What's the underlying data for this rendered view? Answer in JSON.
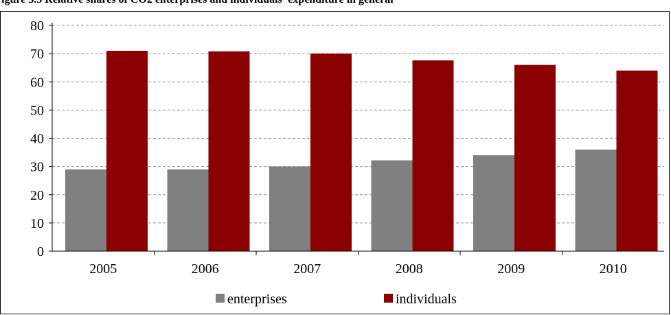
{
  "title": "igure 3.5 Relative shares of CO2 enterprises and individuals' expenditure in general",
  "chart_data": {
    "type": "bar",
    "categories": [
      "2005",
      "2006",
      "2007",
      "2008",
      "2009",
      "2010"
    ],
    "series": [
      {
        "name": "enterprises",
        "values": [
          29,
          29,
          30,
          32.2,
          34,
          36
        ],
        "color": "#808080"
      },
      {
        "name": "individuals",
        "values": [
          71,
          70.8,
          70,
          67.6,
          66,
          64
        ],
        "color": "#8b0000"
      }
    ],
    "ylim": [
      0,
      80
    ],
    "yticks": [
      0,
      10,
      20,
      30,
      40,
      50,
      60,
      70,
      80
    ],
    "grid": true,
    "grid_style": "dashed",
    "legend_position": "bottom"
  }
}
